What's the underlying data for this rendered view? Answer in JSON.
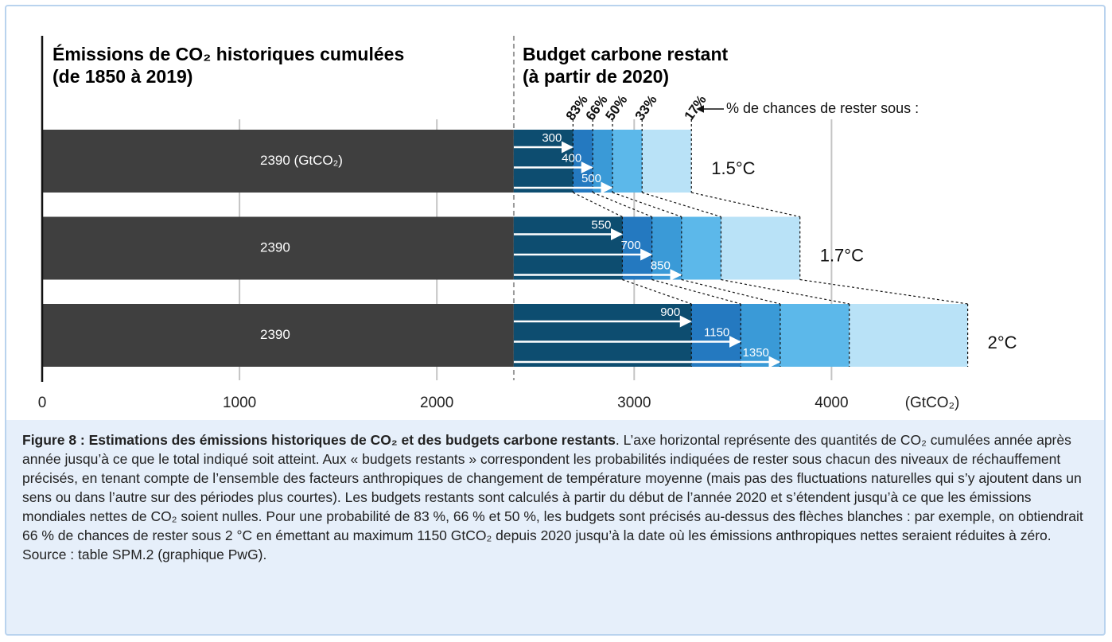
{
  "chart_data": {
    "type": "bar",
    "orientation": "horizontal",
    "title_left": [
      "Émissions de CO₂ historiques cumulées",
      "(de 1850 à 2019)"
    ],
    "title_right": [
      "Budget carbone restant",
      "(à partir de 2020)"
    ],
    "annotation": "% de chances de rester sous :",
    "categories": [
      "1.5°C",
      "1.7°C",
      "2°C"
    ],
    "historical": {
      "color": "#3f3f3f",
      "values": [
        2390,
        2390,
        2390
      ],
      "value_labels": [
        "2390 (GtCO₂)",
        "2390",
        "2390"
      ]
    },
    "series": [
      {
        "name": "17%",
        "color": "#b9e2f7",
        "values": [
          900,
          1450,
          2300
        ]
      },
      {
        "name": "33%",
        "color": "#5cb8ea",
        "values": [
          650,
          1050,
          1700
        ]
      },
      {
        "name": "50%",
        "color": "#3a9ad7",
        "values": [
          500,
          850,
          1350
        ]
      },
      {
        "name": "66%",
        "color": "#2479c0",
        "values": [
          400,
          700,
          1150
        ]
      },
      {
        "name": "83%",
        "color": "#0d4d70",
        "values": [
          300,
          550,
          900
        ]
      }
    ],
    "xlim": [
      0,
      4800
    ],
    "xticks": [
      0,
      1000,
      2000,
      3000,
      4000
    ],
    "xlabel": "(GtCO₂)",
    "grid": true,
    "caption_title": "Figure 8 : Estimations des émissions historiques de CO₂ et des budgets carbone restants",
    "caption": ". L’axe horizontal représente des quantités de CO₂ cumulées année après année jusqu’à ce que le total indiqué soit atteint. Aux « budgets restants » correspondent les probabilités indiquées de rester sous chacun des niveaux de réchauffement précisés, en tenant compte de l’ensemble des facteurs anthropiques de changement de température moyenne (mais pas des fluctuations naturelles qui s’y ajoutent dans un sens ou dans l’autre sur des périodes plus courtes). Les budgets restants sont calculés à partir du début de l’année 2020 et s’étendent jusqu’à ce que les émissions mondiales nettes de CO₂ soient nulles. Pour une probabilité de 83 %, 66 % et 50 %, les budgets sont précisés au-dessus des flèches blanches : par exemple, on obtiendrait 66 % de chances de rester sous 2 °C en émettant au maximum 1150 GtCO₂ depuis 2020 jusqu’à la date où les émissions anthropiques nettes seraient réduites à zéro. Source : table SPM.2 (graphique PwG)."
  }
}
